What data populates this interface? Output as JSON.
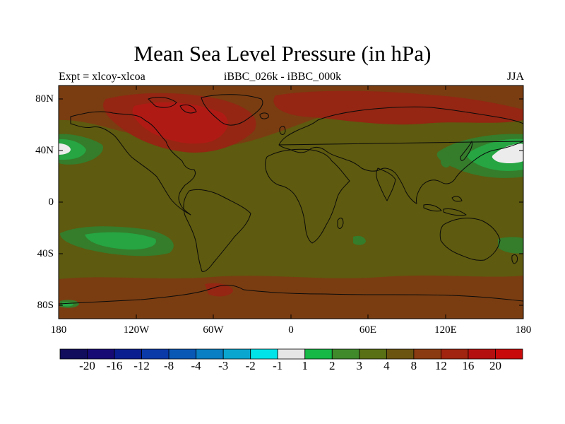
{
  "title": "Mean Sea Level Pressure (in hPa)",
  "subtitle_left": "Expt = xlcoy-xlcoa",
  "subtitle_center": "iBBC_026k - iBBC_000k",
  "subtitle_right": "JJA",
  "lat_labels": [
    "80N",
    "40N",
    "0",
    "40S",
    "80S"
  ],
  "lon_labels": [
    "180",
    "120W",
    "60W",
    "0",
    "60E",
    "120E",
    "180"
  ],
  "colorbar": {
    "colors": [
      "#120c5c",
      "#170a75",
      "#0b1e8f",
      "#0a39a8",
      "#0a58b6",
      "#0a7fc3",
      "#0aa6d0",
      "#00e3e8",
      "#e6e6e6",
      "#16b846",
      "#408a2c",
      "#5a7014",
      "#6a5410",
      "#8a3b12",
      "#a0240f",
      "#b41010",
      "#c80a0a"
    ],
    "labels": [
      "-20",
      "-16",
      "-12",
      "-8",
      "-4",
      "-3",
      "-2",
      "-1",
      "1",
      "2",
      "3",
      "4",
      "8",
      "12",
      "16",
      "20"
    ]
  },
  "field_colors": {
    "background": "#5e5a0f",
    "olive_light": "#6b6118",
    "brown": "#7a3d11",
    "red_brown": "#942613",
    "red": "#b01a15",
    "green_dark": "#357c2b",
    "green": "#26a542",
    "white": "#ececec",
    "coast": "#0a0a0a"
  }
}
